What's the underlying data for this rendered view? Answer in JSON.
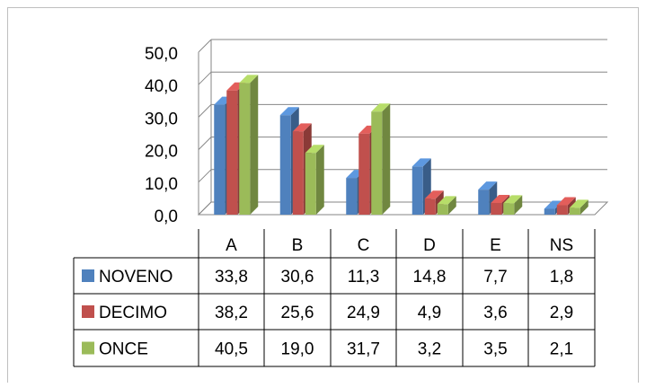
{
  "chart_data": {
    "type": "bar",
    "categories": [
      "A",
      "B",
      "C",
      "D",
      "E",
      "NS"
    ],
    "series": [
      {
        "name": "NOVENO",
        "values": [
          33.8,
          30.6,
          11.3,
          14.8,
          7.7,
          1.8
        ],
        "labels": [
          "33,8",
          "30,6",
          "11,3",
          "14,8",
          "7,7",
          "1,8"
        ],
        "color": "#4F81BD"
      },
      {
        "name": "DECIMO",
        "values": [
          38.2,
          25.6,
          24.9,
          4.9,
          3.6,
          2.9
        ],
        "labels": [
          "38,2",
          "25,6",
          "24,9",
          "4,9",
          "3,6",
          "2,9"
        ],
        "color": "#C0504D"
      },
      {
        "name": "ONCE",
        "values": [
          40.5,
          19.0,
          31.7,
          3.2,
          3.5,
          2.1
        ],
        "labels": [
          "40,5",
          "19,0",
          "31,7",
          "3,2",
          "3,5",
          "2,1"
        ],
        "color": "#9BBB59"
      }
    ],
    "ylim": [
      0,
      50
    ],
    "yticks": [
      0,
      10,
      20,
      30,
      40,
      50
    ],
    "ytick_labels": [
      "0,0",
      "10,0",
      "20,0",
      "30,0",
      "40,0",
      "50,0"
    ],
    "grid": true,
    "style": "3d-clustered-column",
    "legend": "data-table"
  }
}
